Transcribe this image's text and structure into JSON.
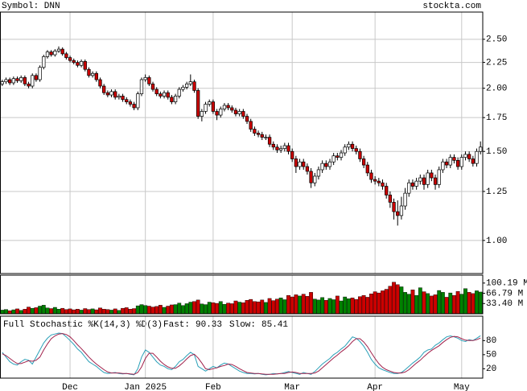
{
  "header": {
    "symbol": "Symbol: DNN",
    "site": "stockta.com"
  },
  "chart_data": [
    {
      "type": "candlestick",
      "log": true,
      "ylim": [
        0.86,
        2.83
      ],
      "yticks": [
        {
          "value": 1.0,
          "label": "1.00"
        },
        1.25,
        {
          "value": 1.5,
          "label": "1.50"
        },
        1.75,
        {
          "value": 2.0,
          "label": "2.00"
        },
        2.25,
        {
          "value": 2.5,
          "label": "2.50"
        }
      ],
      "grid": true,
      "up_color": "#ffffff",
      "down_color": "#cc0000",
      "open": [
        2.04,
        2.06,
        2.08,
        2.05,
        2.09,
        2.07,
        2.1,
        2.04,
        2.02,
        2.12,
        2.08,
        2.2,
        2.31,
        2.36,
        2.33,
        2.37,
        2.39,
        2.34,
        2.3,
        2.27,
        2.25,
        2.22,
        2.26,
        2.18,
        2.12,
        2.14,
        2.08,
        2.02,
        1.96,
        1.94,
        1.97,
        1.92,
        1.93,
        1.9,
        1.88,
        1.86,
        1.83,
        1.95,
        2.08,
        2.1,
        2.04,
        1.99,
        1.95,
        1.93,
        1.96,
        1.92,
        1.88,
        1.93,
        1.99,
        2.01,
        2.04,
        2.06,
        1.98,
        1.76,
        1.8,
        1.86,
        1.88,
        1.8,
        1.77,
        1.82,
        1.85,
        1.83,
        1.81,
        1.78,
        1.8,
        1.76,
        1.72,
        1.66,
        1.63,
        1.62,
        1.6,
        1.6,
        1.55,
        1.53,
        1.51,
        1.52,
        1.54,
        1.5,
        1.45,
        1.4,
        1.43,
        1.4,
        1.37,
        1.3,
        1.34,
        1.38,
        1.42,
        1.4,
        1.43,
        1.47,
        1.46,
        1.49,
        1.53,
        1.55,
        1.52,
        1.5,
        1.45,
        1.41,
        1.36,
        1.32,
        1.31,
        1.3,
        1.28,
        1.23,
        1.19,
        1.14,
        1.12,
        1.17,
        1.24,
        1.3,
        1.28,
        1.31,
        1.33,
        1.29,
        1.36,
        1.33,
        1.29,
        1.38,
        1.43,
        1.41,
        1.46,
        1.44,
        1.4,
        1.46,
        1.48,
        1.45,
        1.42,
        1.5
      ],
      "high": [
        2.08,
        2.1,
        2.1,
        2.11,
        2.11,
        2.12,
        2.12,
        2.06,
        2.14,
        2.14,
        2.22,
        2.33,
        2.38,
        2.38,
        2.39,
        2.42,
        2.41,
        2.36,
        2.32,
        2.29,
        2.27,
        2.28,
        2.28,
        2.2,
        2.16,
        2.16,
        2.1,
        2.04,
        1.98,
        1.99,
        1.99,
        1.95,
        1.95,
        1.92,
        1.9,
        1.88,
        1.97,
        2.1,
        2.13,
        2.12,
        2.06,
        2.01,
        1.97,
        1.98,
        1.98,
        1.94,
        1.95,
        2.01,
        2.03,
        2.06,
        2.13,
        2.08,
        2.0,
        1.82,
        1.88,
        1.9,
        1.9,
        1.82,
        1.84,
        1.87,
        1.87,
        1.85,
        1.83,
        1.82,
        1.82,
        1.78,
        1.74,
        1.68,
        1.65,
        1.64,
        1.62,
        1.62,
        1.57,
        1.55,
        1.54,
        1.56,
        1.56,
        1.52,
        1.47,
        1.45,
        1.45,
        1.42,
        1.39,
        1.36,
        1.4,
        1.44,
        1.44,
        1.45,
        1.49,
        1.49,
        1.51,
        1.55,
        1.57,
        1.57,
        1.54,
        1.52,
        1.47,
        1.43,
        1.38,
        1.34,
        1.33,
        1.32,
        1.3,
        1.25,
        1.21,
        1.2,
        1.22,
        1.27,
        1.32,
        1.32,
        1.33,
        1.35,
        1.35,
        1.38,
        1.38,
        1.35,
        1.4,
        1.45,
        1.45,
        1.48,
        1.48,
        1.46,
        1.48,
        1.5,
        1.5,
        1.47,
        1.52,
        1.57
      ],
      "low": [
        2.02,
        2.04,
        2.03,
        2.03,
        2.05,
        2.05,
        2.02,
        2.0,
        2.0,
        2.06,
        2.06,
        2.18,
        2.29,
        2.31,
        2.31,
        2.35,
        2.32,
        2.28,
        2.25,
        2.23,
        2.2,
        2.2,
        2.16,
        2.1,
        2.1,
        2.06,
        2.0,
        1.94,
        1.92,
        1.92,
        1.9,
        1.9,
        1.88,
        1.86,
        1.84,
        1.81,
        1.81,
        1.93,
        2.06,
        2.02,
        1.97,
        1.93,
        1.91,
        1.91,
        1.9,
        1.86,
        1.86,
        1.91,
        1.97,
        1.99,
        2.02,
        1.96,
        1.74,
        1.72,
        1.78,
        1.84,
        1.78,
        1.73,
        1.75,
        1.8,
        1.81,
        1.79,
        1.76,
        1.76,
        1.74,
        1.7,
        1.64,
        1.61,
        1.6,
        1.58,
        1.58,
        1.53,
        1.51,
        1.49,
        1.49,
        1.5,
        1.48,
        1.43,
        1.36,
        1.38,
        1.38,
        1.35,
        1.27,
        1.28,
        1.32,
        1.36,
        1.38,
        1.38,
        1.41,
        1.44,
        1.44,
        1.47,
        1.51,
        1.5,
        1.48,
        1.43,
        1.39,
        1.34,
        1.3,
        1.29,
        1.28,
        1.26,
        1.21,
        1.16,
        1.1,
        1.07,
        1.1,
        1.15,
        1.22,
        1.26,
        1.26,
        1.29,
        1.26,
        1.27,
        1.31,
        1.26,
        1.27,
        1.36,
        1.39,
        1.39,
        1.42,
        1.38,
        1.38,
        1.44,
        1.43,
        1.4,
        1.4,
        1.48
      ],
      "close": [
        2.06,
        2.08,
        2.05,
        2.09,
        2.07,
        2.1,
        2.04,
        2.02,
        2.12,
        2.08,
        2.2,
        2.31,
        2.36,
        2.33,
        2.37,
        2.39,
        2.34,
        2.3,
        2.27,
        2.25,
        2.22,
        2.26,
        2.18,
        2.12,
        2.14,
        2.08,
        2.02,
        1.96,
        1.94,
        1.97,
        1.92,
        1.93,
        1.9,
        1.88,
        1.86,
        1.83,
        1.95,
        2.08,
        2.1,
        2.04,
        1.99,
        1.95,
        1.93,
        1.96,
        1.92,
        1.88,
        1.93,
        1.99,
        2.01,
        2.04,
        2.06,
        1.98,
        1.76,
        1.8,
        1.86,
        1.88,
        1.8,
        1.77,
        1.82,
        1.85,
        1.83,
        1.81,
        1.78,
        1.8,
        1.76,
        1.72,
        1.66,
        1.63,
        1.62,
        1.6,
        1.6,
        1.55,
        1.53,
        1.51,
        1.52,
        1.54,
        1.5,
        1.45,
        1.4,
        1.43,
        1.4,
        1.37,
        1.3,
        1.34,
        1.38,
        1.42,
        1.4,
        1.43,
        1.47,
        1.46,
        1.49,
        1.53,
        1.55,
        1.52,
        1.5,
        1.45,
        1.41,
        1.36,
        1.32,
        1.31,
        1.3,
        1.28,
        1.23,
        1.19,
        1.14,
        1.12,
        1.17,
        1.24,
        1.3,
        1.28,
        1.31,
        1.33,
        1.29,
        1.36,
        1.33,
        1.29,
        1.38,
        1.43,
        1.41,
        1.46,
        1.44,
        1.4,
        1.46,
        1.48,
        1.45,
        1.42,
        1.5,
        1.53
      ]
    },
    {
      "type": "volume",
      "ylim": [
        0,
        126
      ],
      "yticks": [
        {
          "value": 33.4,
          "label": "33.40 M"
        },
        {
          "value": 66.79,
          "label": "66.79 M"
        },
        {
          "value": 100.19,
          "label": "100.19 M"
        }
      ],
      "up_color": "#008000",
      "down_color": "#cc0000",
      "values": [
        12,
        14,
        10,
        13,
        16,
        11,
        15,
        22,
        18,
        20,
        25,
        28,
        19,
        17,
        21,
        15,
        18,
        14,
        16,
        13,
        15,
        12,
        17,
        14,
        16,
        13,
        19,
        15,
        14,
        12,
        16,
        11,
        18,
        20,
        15,
        17,
        26,
        30,
        27,
        25,
        22,
        24,
        28,
        21,
        25,
        29,
        30,
        35,
        27,
        33,
        38,
        40,
        45,
        32,
        30,
        38,
        36,
        34,
        40,
        31,
        35,
        33,
        42,
        38,
        36,
        44,
        47,
        40,
        39,
        45,
        37,
        50,
        43,
        48,
        52,
        46,
        60,
        55,
        62,
        58,
        64,
        57,
        70,
        48,
        45,
        53,
        44,
        50,
        46,
        58,
        42,
        55,
        49,
        52,
        47,
        56,
        60,
        54,
        65,
        72,
        68,
        75,
        80,
        90,
        103,
        95,
        88,
        70,
        64,
        78,
        60,
        85,
        72,
        66,
        58,
        62,
        76,
        70,
        54,
        68,
        60,
        73,
        64,
        82,
        70,
        66,
        75,
        71
      ]
    },
    {
      "type": "line",
      "title": "Full Stochastic %K(14,3) %D(3)",
      "ylim": [
        0,
        132
      ],
      "yticks": [
        20,
        50,
        80
      ],
      "xlim": [
        -0.6,
        127.6
      ],
      "xticks": [
        {
          "value": 18,
          "label": "Dec"
        },
        {
          "value": 38,
          "label": "Jan 2025"
        },
        {
          "value": 56,
          "label": "Feb"
        },
        {
          "value": 77,
          "label": "Mar"
        },
        {
          "value": 99,
          "label": "Apr"
        },
        {
          "value": 122,
          "label": "May"
        }
      ],
      "series": [
        {
          "name": "Fast:",
          "color": "#2aa0b8",
          "values": [
            55,
            45,
            35,
            30,
            28,
            35,
            40,
            38,
            30,
            45,
            60,
            75,
            85,
            92,
            94,
            96,
            95,
            88,
            80,
            72,
            62,
            55,
            45,
            35,
            30,
            25,
            18,
            12,
            10,
            11,
            12,
            10,
            9,
            10,
            8,
            7,
            20,
            45,
            60,
            55,
            45,
            35,
            28,
            25,
            20,
            18,
            25,
            35,
            40,
            48,
            55,
            50,
            25,
            20,
            15,
            20,
            25,
            22,
            28,
            32,
            30,
            25,
            20,
            15,
            12,
            10,
            10,
            9,
            10,
            8,
            7,
            8,
            10,
            9,
            10,
            12,
            14,
            12,
            10,
            8,
            12,
            10,
            8,
            14,
            22,
            30,
            36,
            42,
            50,
            55,
            62,
            68,
            78,
            88,
            85,
            78,
            68,
            55,
            40,
            30,
            22,
            18,
            15,
            12,
            10,
            10,
            12,
            18,
            25,
            32,
            38,
            45,
            55,
            60,
            62,
            70,
            75,
            82,
            88,
            90,
            88,
            85,
            80,
            78,
            82,
            80,
            85,
            90.33
          ]
        },
        {
          "name": "Slow:",
          "color": "#a0204a",
          "values": [
            52,
            48,
            42,
            36,
            31,
            31,
            34,
            37,
            36,
            38,
            45,
            60,
            73,
            84,
            90,
            94,
            95,
            93,
            88,
            80,
            71,
            63,
            54,
            45,
            37,
            30,
            24,
            18,
            13,
            11,
            11,
            11,
            10,
            10,
            9,
            8,
            12,
            24,
            42,
            53,
            53,
            45,
            36,
            29,
            24,
            21,
            21,
            26,
            33,
            41,
            48,
            51,
            43,
            32,
            20,
            18,
            20,
            22,
            25,
            27,
            30,
            29,
            25,
            20,
            16,
            12,
            11,
            10,
            10,
            9,
            8,
            8,
            8,
            9,
            10,
            10,
            12,
            13,
            12,
            10,
            10,
            10,
            10,
            11,
            15,
            22,
            29,
            36,
            43,
            49,
            56,
            62,
            69,
            78,
            84,
            84,
            77,
            67,
            54,
            42,
            31,
            23,
            18,
            15,
            12,
            11,
            11,
            13,
            18,
            25,
            32,
            38,
            46,
            53,
            59,
            64,
            69,
            76,
            82,
            87,
            89,
            88,
            84,
            81,
            80,
            80,
            82,
            85.41
          ]
        }
      ]
    }
  ]
}
